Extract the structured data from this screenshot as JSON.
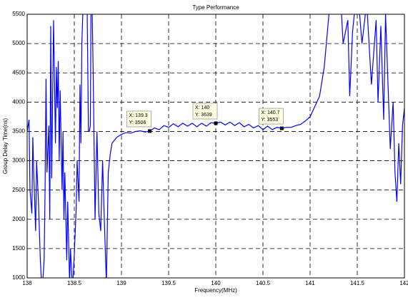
{
  "chart_data": {
    "type": "line",
    "title": "Type Performance",
    "x_label": "Frequency(MHz)",
    "y_label": "Group Delay Time(ns)",
    "xlim": [
      138,
      142
    ],
    "xticks": [
      138,
      138.5,
      139,
      139.5,
      140,
      140.5,
      141,
      141.5,
      142
    ],
    "ylim": [
      1000,
      5500
    ],
    "yticks": [
      1000,
      1500,
      2000,
      2500,
      3000,
      3500,
      4000,
      4500,
      5000,
      5500
    ],
    "grid": true,
    "series": [
      {
        "color": "#0000ff",
        "x": [
          138.0,
          138.02,
          138.03,
          138.05,
          138.06,
          138.07,
          138.09,
          138.1,
          138.12,
          138.14,
          138.15,
          138.16,
          138.18,
          138.19,
          138.2,
          138.21,
          138.23,
          138.24,
          138.25,
          138.26,
          138.28,
          138.3,
          138.31,
          138.32,
          138.33,
          138.34,
          138.35,
          138.37,
          138.38,
          138.39,
          138.4,
          138.42,
          138.43,
          138.45,
          138.46,
          138.48,
          138.5,
          138.52,
          138.53,
          138.55,
          138.56,
          138.57,
          138.58,
          138.6,
          138.62,
          138.63,
          138.65,
          138.66,
          138.67,
          138.68,
          138.7,
          138.72,
          138.74,
          138.76,
          138.78,
          138.8,
          138.82,
          138.84,
          138.86,
          138.88,
          138.9,
          138.95,
          139.0,
          139.05,
          139.1,
          139.15,
          139.2,
          139.25,
          139.3,
          139.35,
          139.4,
          139.45,
          139.5,
          139.55,
          139.6,
          139.65,
          139.7,
          139.75,
          139.8,
          139.85,
          139.9,
          139.95,
          140.0,
          140.05,
          140.1,
          140.15,
          140.2,
          140.25,
          140.3,
          140.35,
          140.4,
          140.45,
          140.5,
          140.55,
          140.6,
          140.65,
          140.7,
          140.75,
          140.8,
          140.85,
          140.9,
          140.95,
          141.0,
          141.1,
          141.15,
          141.2,
          141.22,
          141.3,
          141.35,
          141.4,
          141.42,
          141.45,
          141.5,
          141.55,
          141.6,
          141.65,
          141.7,
          141.72,
          141.75,
          141.78,
          141.8,
          141.85,
          141.88,
          141.9,
          141.92,
          141.94,
          141.96,
          141.98,
          142.0
        ],
        "values": [
          3500,
          3700,
          2500,
          2100,
          3400,
          2800,
          1800,
          3000,
          2300,
          1300,
          1000,
          800,
          1300,
          2500,
          4400,
          2800,
          3600,
          2000,
          5300,
          2700,
          5400,
          3300,
          4600,
          3900,
          4700,
          3000,
          4200,
          2500,
          3500,
          2000,
          2800,
          1300,
          2300,
          900,
          1500,
          800,
          1400,
          2200,
          3000,
          2300,
          4300,
          3300,
          5000,
          6000,
          5600,
          6500,
          3500,
          3500,
          3600,
          6500,
          4500,
          2000,
          3500,
          2100,
          1800,
          3000,
          1900,
          900,
          2800,
          3100,
          3300,
          3400,
          3450,
          3480,
          3470,
          3500,
          3510,
          3490,
          3506,
          3560,
          3530,
          3600,
          3570,
          3630,
          3580,
          3640,
          3590,
          3640,
          3580,
          3640,
          3590,
          3650,
          3639,
          3660,
          3610,
          3660,
          3600,
          3650,
          3580,
          3620,
          3560,
          3600,
          3530,
          3590,
          3530,
          3570,
          3553,
          3570,
          3570,
          3600,
          3620,
          3680,
          3750,
          4100,
          4600,
          5500,
          6500,
          6500,
          5000,
          5400,
          4100,
          5200,
          6000,
          5000,
          5700,
          4300,
          5400,
          4000,
          5300,
          3700,
          5500,
          3200,
          4000,
          2800,
          2300,
          3300,
          2600,
          3600,
          3900
        ]
      }
    ],
    "datatips": [
      {
        "x": 139.3,
        "y": 3506,
        "lines": [
          "X: 139.3",
          "Y: 3506"
        ]
      },
      {
        "x": 140,
        "y": 3639,
        "lines": [
          "X: 140",
          "Y: 3639"
        ]
      },
      {
        "x": 140.7,
        "y": 3553,
        "lines": [
          "X: 140.7",
          "Y: 3553"
        ]
      }
    ]
  }
}
